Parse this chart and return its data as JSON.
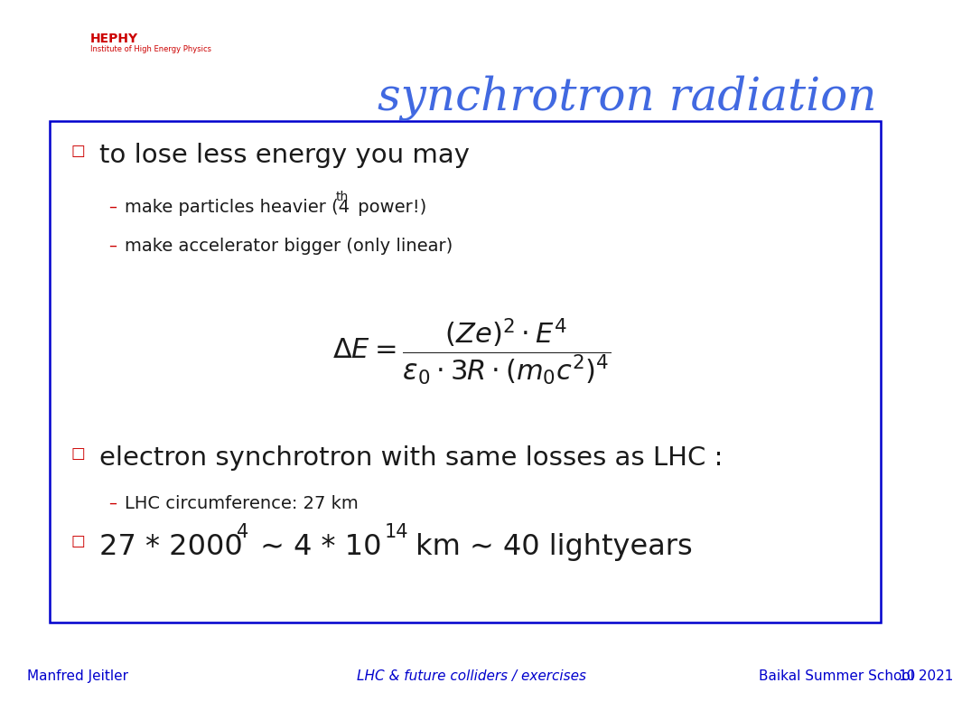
{
  "title": "synchrotron radiation",
  "title_color": "#4169E1",
  "title_fontsize": 36,
  "bg_color": "#ffffff",
  "box_border_color": "#0000CD",
  "bullet_color": "#CC0000",
  "bullet_char": "□",
  "dash_color": "#CC0000",
  "text_color": "#1a1a1a",
  "footer_color": "#0000CD",
  "footer_left": "Manfred Jeitler",
  "footer_center": "LHC & future colliders / exercises",
  "footer_right": "Baikal Summer School 2021",
  "footer_number": "10",
  "bullet1": "to lose less energy you may",
  "sub1b": "make accelerator bigger (only linear)",
  "bullet2": "electron synchrotron with same losses as LHC :",
  "sub2a": "LHC circumference: 27 km"
}
